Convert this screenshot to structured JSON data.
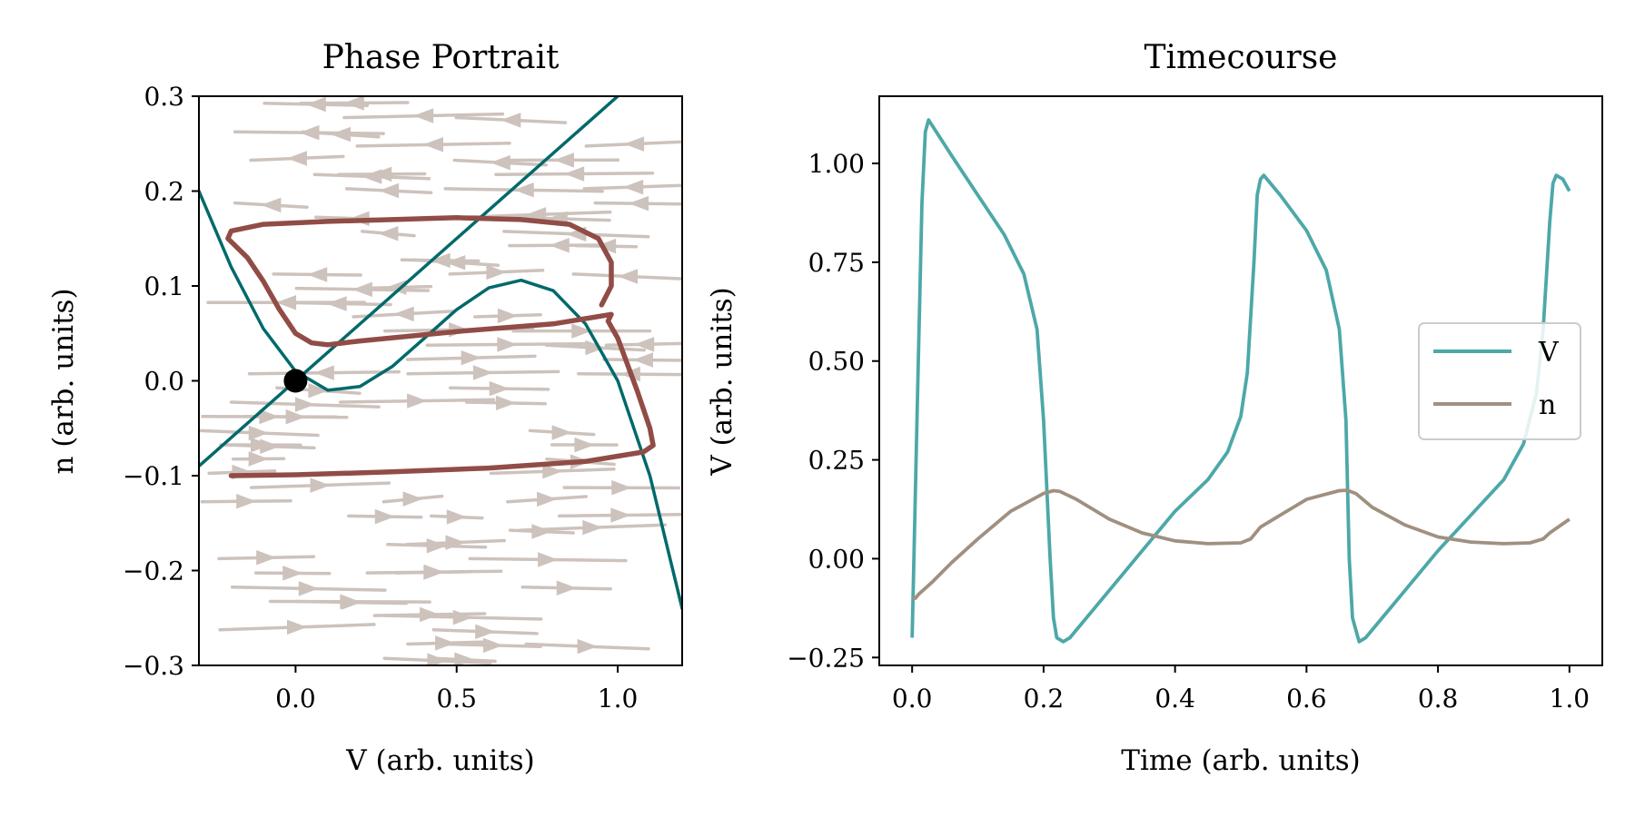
{
  "chart_data": [
    {
      "type": "line",
      "title": "Phase Portrait",
      "xlabel": "V (arb. units)",
      "ylabel": "n (arb. units)",
      "xlim": [
        -0.3,
        1.2
      ],
      "ylim": [
        -0.3,
        0.3
      ],
      "xticks": [
        0.0,
        0.5,
        1.0
      ],
      "xtick_labels": [
        "0.0",
        "0.5",
        "1.0"
      ],
      "yticks": [
        -0.3,
        -0.2,
        -0.1,
        0.0,
        0.1,
        0.2,
        0.3
      ],
      "ytick_labels": [
        "−0.3",
        "−0.2",
        "−0.1",
        "0.0",
        "0.1",
        "0.2",
        "0.3"
      ],
      "grid": false,
      "background": "streamplot",
      "colors": {
        "streamlines": "#cdc2bc",
        "nullclines": "#00696b",
        "trajectory": "#914c46",
        "fixed_point": "#000000"
      },
      "series": [
        {
          "role": "v-nullcline",
          "x": [
            -0.3,
            -0.2,
            -0.1,
            0.0,
            0.1,
            0.2,
            0.3,
            0.4,
            0.5,
            0.6,
            0.7,
            0.8,
            0.9,
            1.0,
            1.1,
            1.2
          ],
          "y": [
            0.2,
            0.12,
            0.055,
            0.01,
            -0.01,
            -0.006,
            0.015,
            0.045,
            0.075,
            0.098,
            0.106,
            0.095,
            0.06,
            0.0,
            -0.1,
            -0.24
          ]
        },
        {
          "role": "n-nullcline",
          "x": [
            -0.3,
            1.0
          ],
          "y": [
            -0.09,
            0.3
          ]
        },
        {
          "role": "trajectory",
          "x": [
            -0.2,
            0.0,
            0.3,
            0.6,
            0.9,
            1.08,
            1.11,
            1.1,
            1.06,
            1.0,
            0.97,
            0.98,
            0.8,
            0.5,
            0.2,
            0.1,
            0.05,
            0.0,
            -0.05,
            -0.1,
            -0.15,
            -0.21,
            -0.2,
            -0.1,
            0.1,
            0.3,
            0.5,
            0.7,
            0.85,
            0.94,
            0.98,
            0.98,
            0.95
          ],
          "y": [
            -0.1,
            -0.099,
            -0.096,
            -0.092,
            -0.085,
            -0.075,
            -0.068,
            -0.05,
            -0.01,
            0.045,
            0.063,
            0.07,
            0.06,
            0.052,
            0.042,
            0.038,
            0.04,
            0.05,
            0.075,
            0.105,
            0.13,
            0.15,
            0.158,
            0.165,
            0.168,
            0.17,
            0.172,
            0.17,
            0.165,
            0.15,
            0.125,
            0.1,
            0.08
          ]
        }
      ],
      "fixed_point": {
        "x": 0.0,
        "y": 0.0
      }
    },
    {
      "type": "line",
      "title": "Timecourse",
      "xlabel": "Time (arb. units)",
      "ylabel": "V (arb. units)",
      "xlim": [
        -0.05,
        1.05
      ],
      "ylim": [
        -0.27,
        1.17
      ],
      "xticks": [
        0.0,
        0.2,
        0.4,
        0.6,
        0.8,
        1.0
      ],
      "xtick_labels": [
        "0.0",
        "0.2",
        "0.4",
        "0.6",
        "0.8",
        "1.0"
      ],
      "yticks": [
        -0.25,
        0.0,
        0.25,
        0.5,
        0.75,
        1.0
      ],
      "ytick_labels": [
        "−0.25",
        "0.00",
        "0.25",
        "0.50",
        "0.75",
        "1.00"
      ],
      "grid": false,
      "legend": {
        "position": "center-right"
      },
      "series": [
        {
          "name": "V",
          "color": "#4da8a8",
          "x": [
            0.0,
            0.008,
            0.015,
            0.02,
            0.025,
            0.06,
            0.1,
            0.14,
            0.17,
            0.19,
            0.2,
            0.21,
            0.215,
            0.22,
            0.23,
            0.24,
            0.3,
            0.35,
            0.4,
            0.45,
            0.48,
            0.5,
            0.51,
            0.52,
            0.525,
            0.53,
            0.535,
            0.56,
            0.6,
            0.63,
            0.65,
            0.66,
            0.665,
            0.67,
            0.68,
            0.69,
            0.75,
            0.8,
            0.85,
            0.9,
            0.93,
            0.95,
            0.96,
            0.97,
            0.975,
            0.98,
            0.99,
            1.0
          ],
          "y": [
            -0.2,
            0.4,
            0.9,
            1.08,
            1.11,
            1.02,
            0.92,
            0.82,
            0.72,
            0.58,
            0.35,
            0.0,
            -0.15,
            -0.2,
            -0.21,
            -0.2,
            -0.08,
            0.02,
            0.12,
            0.2,
            0.27,
            0.36,
            0.47,
            0.75,
            0.92,
            0.96,
            0.97,
            0.92,
            0.83,
            0.73,
            0.58,
            0.35,
            0.0,
            -0.15,
            -0.21,
            -0.2,
            -0.08,
            0.02,
            0.11,
            0.2,
            0.29,
            0.42,
            0.58,
            0.85,
            0.95,
            0.97,
            0.96,
            0.93
          ]
        },
        {
          "name": "n",
          "color": "#a09080",
          "x": [
            0.0,
            0.005,
            0.01,
            0.03,
            0.06,
            0.1,
            0.15,
            0.2,
            0.215,
            0.225,
            0.25,
            0.3,
            0.35,
            0.4,
            0.45,
            0.5,
            0.515,
            0.53,
            0.56,
            0.6,
            0.65,
            0.662,
            0.675,
            0.7,
            0.75,
            0.8,
            0.85,
            0.9,
            0.94,
            0.96,
            0.97,
            1.0
          ],
          "y": [
            -0.1,
            -0.1,
            -0.09,
            -0.06,
            -0.01,
            0.05,
            0.12,
            0.165,
            0.172,
            0.17,
            0.15,
            0.1,
            0.065,
            0.045,
            0.038,
            0.04,
            0.05,
            0.08,
            0.11,
            0.15,
            0.172,
            0.173,
            0.165,
            0.13,
            0.085,
            0.055,
            0.042,
            0.038,
            0.04,
            0.05,
            0.065,
            0.1
          ]
        }
      ]
    }
  ]
}
